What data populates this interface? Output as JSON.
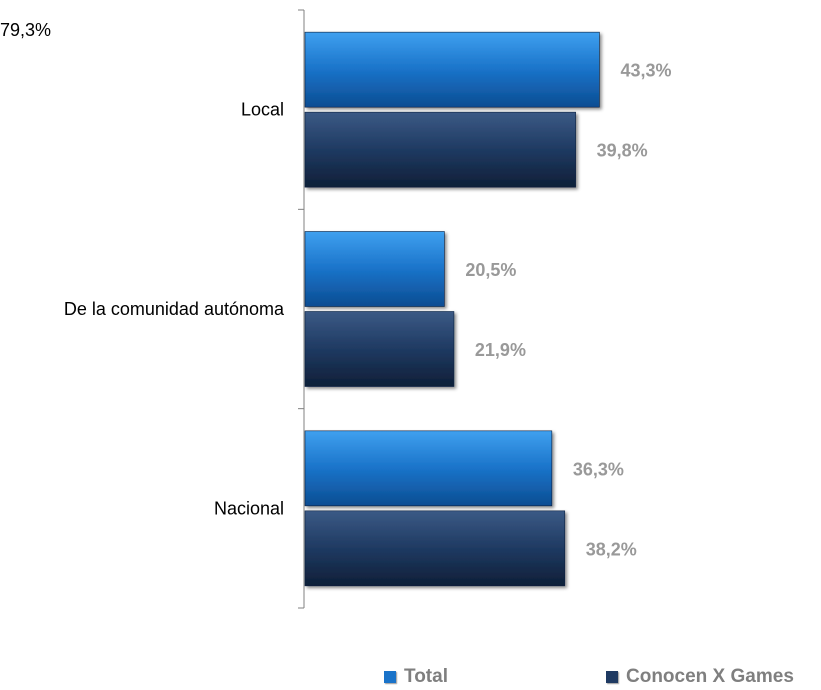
{
  "corner_text": "79,3%",
  "chart_data": {
    "type": "bar",
    "orientation": "horizontal",
    "categories": [
      "Local",
      "De la comunidad autónoma",
      "Nacional"
    ],
    "series": [
      {
        "name": "Total",
        "values": [
          43.3,
          20.5,
          36.3
        ],
        "labels": [
          "43,3%",
          "20,5%",
          "36,3%"
        ],
        "color": "#1a73c9"
      },
      {
        "name": "Conocen X Games",
        "values": [
          39.8,
          21.9,
          38.2
        ],
        "labels": [
          "39,8%",
          "21,9%",
          "38,2%"
        ],
        "color": "#1f3a62"
      }
    ],
    "xlim": [
      0,
      50
    ],
    "grid": false,
    "legend": "bottom",
    "colors": {
      "total": "#1a73c9",
      "conocen": "#1f3a62",
      "label": "#999999",
      "axis": "#808080"
    }
  }
}
